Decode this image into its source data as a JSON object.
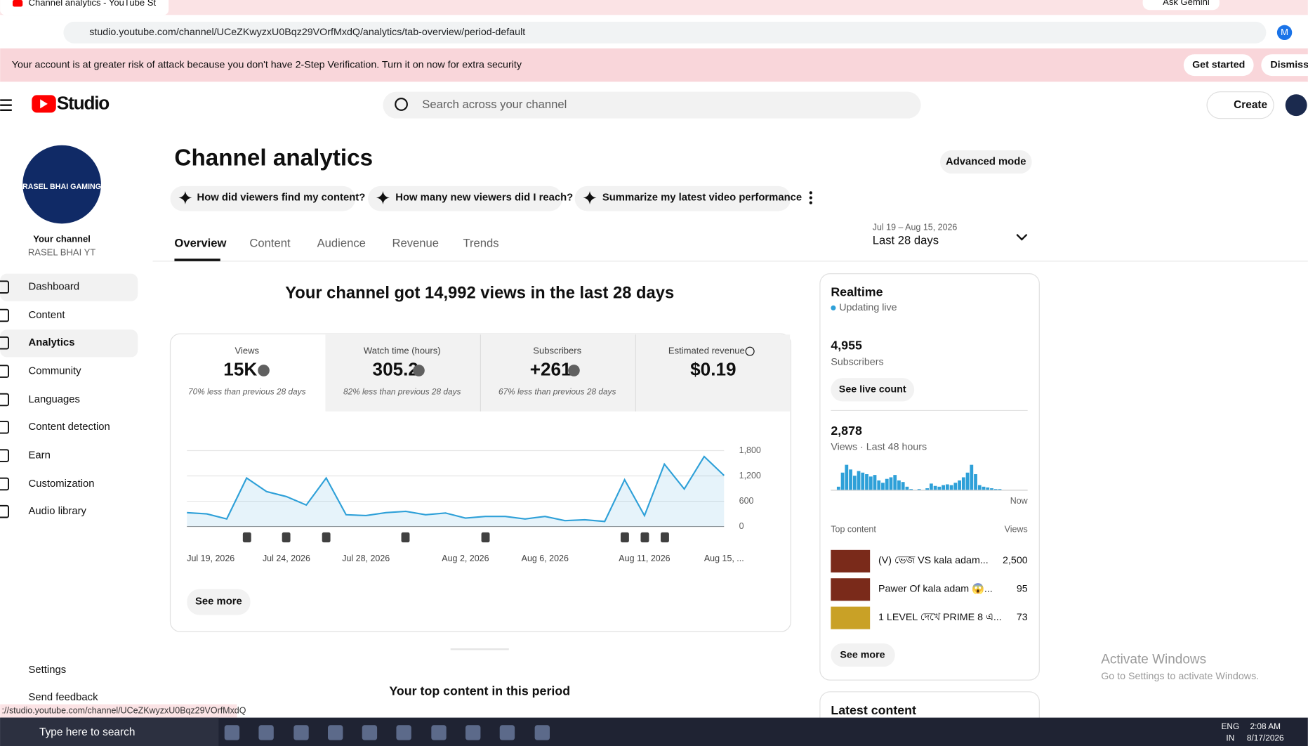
{
  "browser": {
    "tab_title": "Channel analytics - YouTube St",
    "url": "studio.youtube.com/channel/UCeZKwyzxU0Bqz29VOrfMxdQ/analytics/tab-overview/period-default",
    "ask_gemini": "Ask Gemini",
    "profile_initial": "M",
    "status_url": "://studio.youtube.com/channel/UCeZKwyzxU0Bqz29VOrfMxdQ"
  },
  "banner": {
    "text": "Your account is at greater risk of attack because you don't have 2-Step Verification. Turn it on now for extra security",
    "get_started": "Get started",
    "dismiss": "Dismiss"
  },
  "header": {
    "logo": "Studio",
    "search_placeholder": "Search across your channel",
    "create": "Create"
  },
  "sidebar": {
    "avatar_text": "RASEL BHAI GAMING",
    "channel_label": "Your channel",
    "channel_name": "RASEL BHAI YT",
    "nav": [
      "Dashboard",
      "Content",
      "Analytics",
      "Community",
      "Languages",
      "Content detection",
      "Earn",
      "Customization",
      "Audio library"
    ],
    "settings": "Settings",
    "feedback": "Send feedback"
  },
  "main": {
    "title": "Channel analytics",
    "advanced": "Advanced mode",
    "prompts": [
      "How did viewers find my content?",
      "How many new viewers did I reach?",
      "Summarize my latest video performance"
    ],
    "tabs": [
      "Overview",
      "Content",
      "Audience",
      "Revenue",
      "Trends"
    ],
    "date_range": "Jul 19 – Aug 15, 2026",
    "period": "Last 28 days",
    "headline": "Your channel got 14,992 views in the last 28 days",
    "metrics": [
      {
        "label": "Views",
        "value": "15K",
        "note": "70% less than previous 28 days"
      },
      {
        "label": "Watch time (hours)",
        "value": "305.2",
        "note": "82% less than previous 28 days"
      },
      {
        "label": "Subscribers",
        "value": "+261",
        "note": "67% less than previous 28 days"
      },
      {
        "label": "Estimated revenue",
        "value": "$0.19"
      }
    ],
    "see_more": "See more",
    "top_content_heading": "Your top content in this period"
  },
  "chart_data": [
    {
      "type": "line",
      "color": "#2ea0d8",
      "grid": true,
      "categories": [
        "Jul 19, 2026",
        null,
        null,
        null,
        null,
        "Jul 24, 2026",
        null,
        null,
        null,
        "Jul 28, 2026",
        null,
        null,
        null,
        null,
        "Aug 2, 2026",
        null,
        null,
        null,
        "Aug 6, 2026",
        null,
        null,
        null,
        null,
        "Aug 11, 2026",
        null,
        null,
        null,
        "Aug 15, ..."
      ],
      "values": [
        330,
        300,
        180,
        1150,
        830,
        710,
        510,
        1150,
        280,
        260,
        330,
        360,
        280,
        320,
        200,
        240,
        240,
        180,
        240,
        140,
        160,
        120,
        1110,
        260,
        1480,
        890,
        1660,
        1210
      ],
      "ylim": [
        0,
        1800
      ],
      "yticks": [
        0,
        600,
        {
          "value": 1200,
          "label": "1,200"
        },
        {
          "value": 1800,
          "label": "1,800"
        }
      ]
    },
    {
      "type": "bar",
      "color": "#2ea0d8",
      "end_label": "Now",
      "values": [
        0,
        20,
        110,
        160,
        130,
        90,
        120,
        110,
        100,
        85,
        95,
        60,
        45,
        70,
        80,
        95,
        60,
        50,
        20,
        5,
        0,
        5,
        0,
        10,
        40,
        25,
        20,
        30,
        35,
        30,
        45,
        60,
        80,
        110,
        160,
        100,
        30,
        20,
        15,
        10,
        5,
        5,
        0,
        0,
        0,
        0,
        0,
        0
      ]
    }
  ],
  "realtime": {
    "title": "Realtime",
    "status": "Updating live",
    "subscribers": "4,955",
    "subscribers_label": "Subscribers",
    "live_count": "See live count",
    "views": "2,878",
    "views_label": "Views · Last 48 hours",
    "top_label": "Top content",
    "views_col": "Views",
    "top": [
      {
        "title": "(V) ভেজ VS kala adam...",
        "views": "2,500"
      },
      {
        "title": "Pawer Of kala adam 😱...",
        "views": "95"
      },
      {
        "title": "1 LEVEL দেখে PRIME 8 এ...",
        "views": "73"
      }
    ],
    "see_more": "See more",
    "latest": "Latest content"
  },
  "windows": {
    "activate": "Activate Windows",
    "activate_sub": "Go to Settings to activate Windows."
  },
  "taskbar": {
    "search": "Type here to search",
    "lang": "ENG",
    "region": "IN",
    "time": "2:08 AM",
    "date": "8/17/2026"
  }
}
